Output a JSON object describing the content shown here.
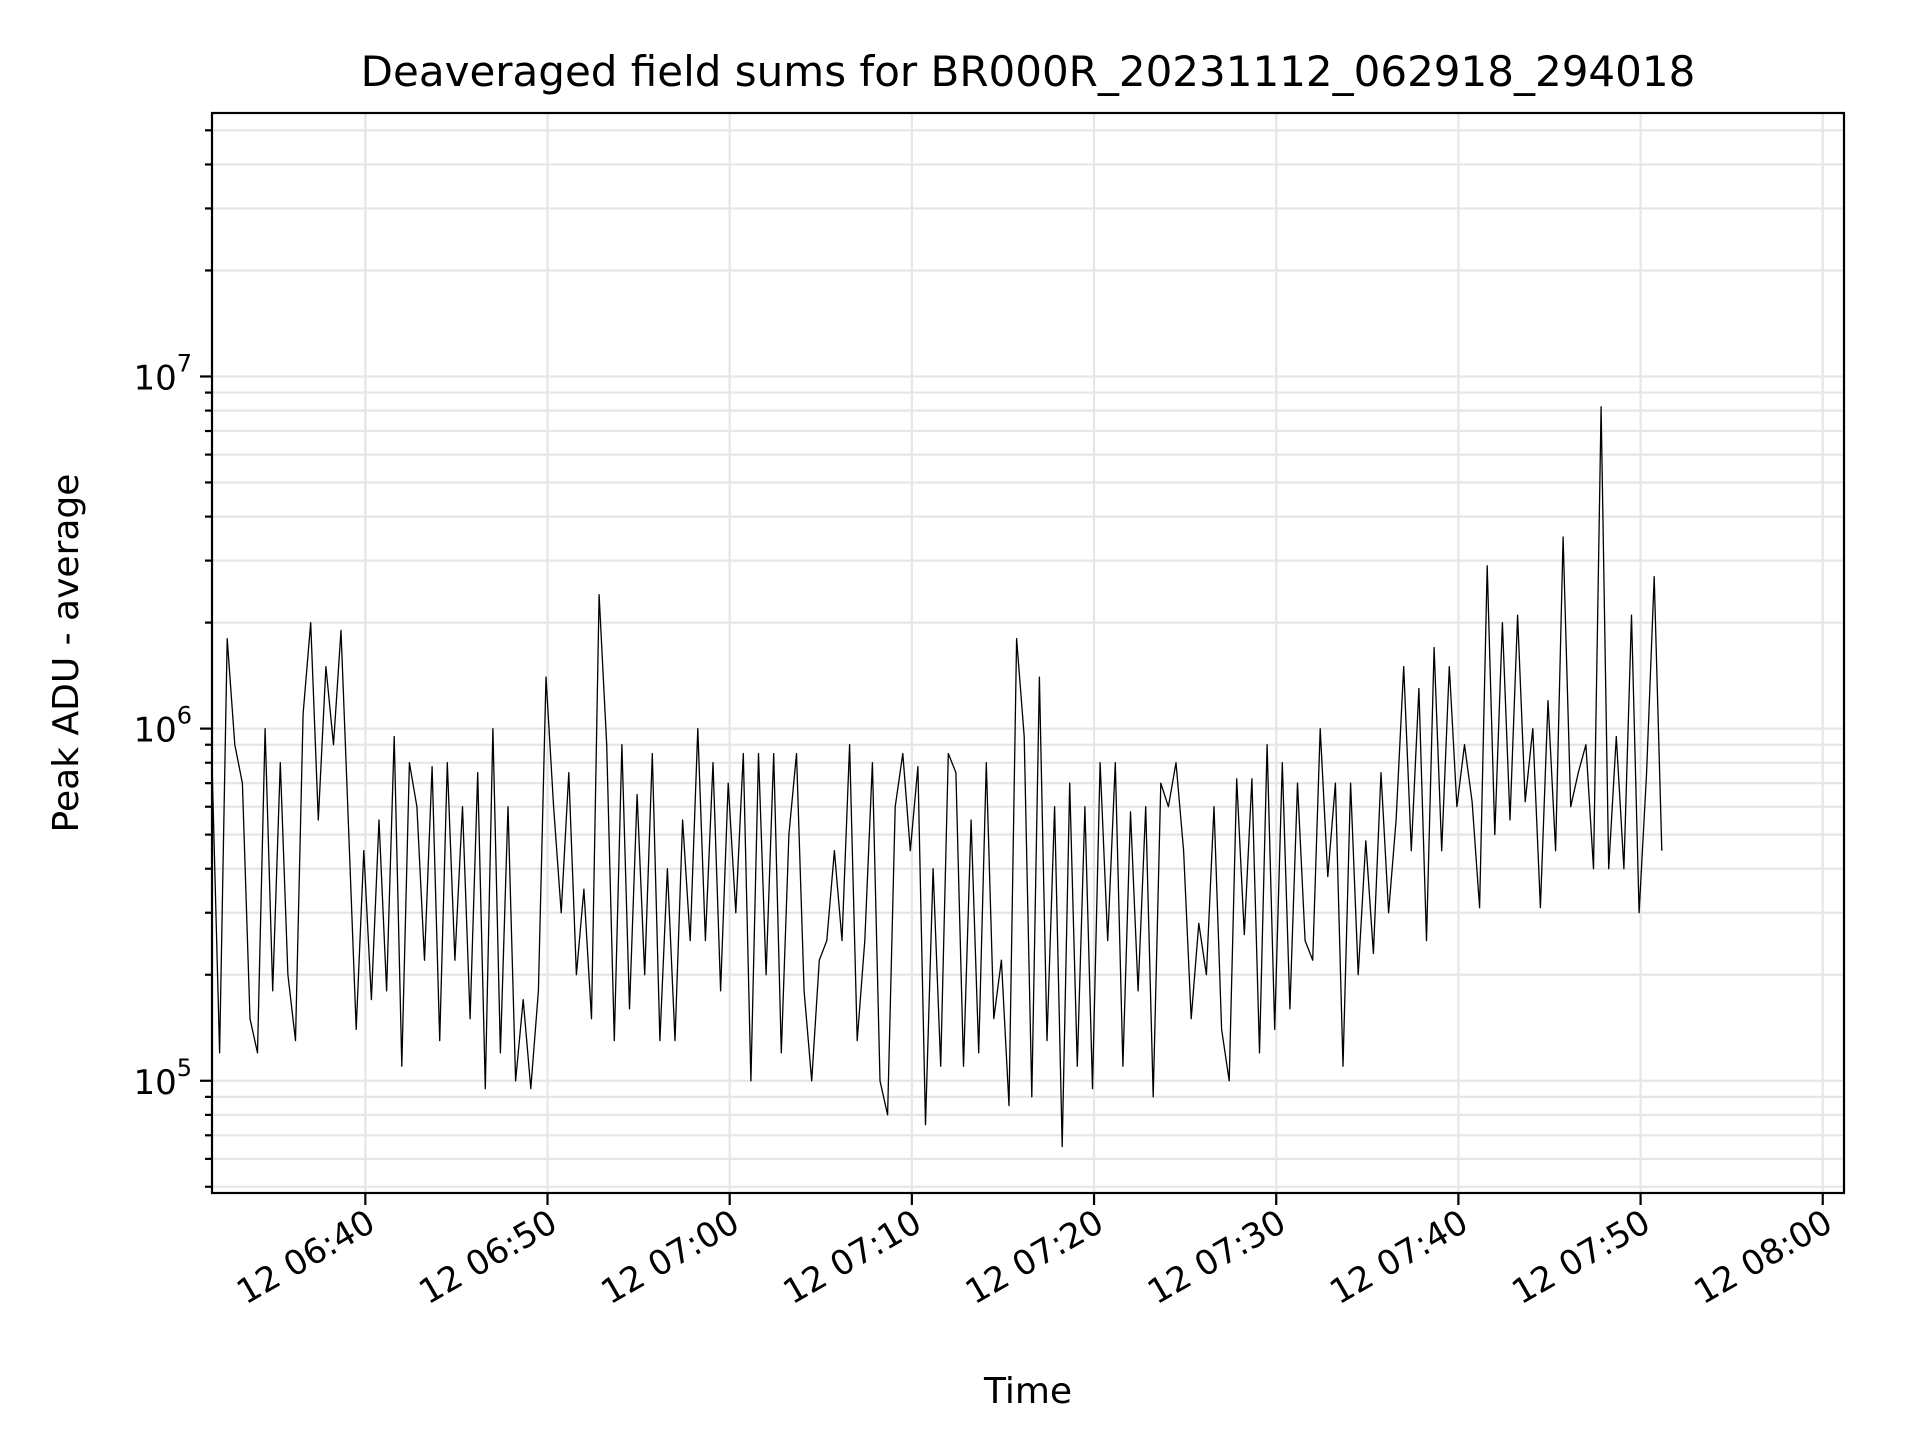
{
  "chart_data": {
    "type": "line",
    "title": "Deaveraged field sums for BR000R_20231112_062918_294018",
    "xlabel": "Time",
    "ylabel": "Peak ADU - average",
    "yscale": "log",
    "grid": true,
    "x_range": [
      "2023-11-12 06:31:35",
      "2023-11-12 08:01:10"
    ],
    "y_range": [
      48000,
      56000000
    ],
    "x_ticks": [
      "12 06:40",
      "12 06:50",
      "12 07:00",
      "12 07:10",
      "12 07:20",
      "12 07:30",
      "12 07:40",
      "12 07:50",
      "12 08:00"
    ],
    "y_ticks": [
      {
        "base": "10",
        "exp": "5",
        "value": 100000
      },
      {
        "base": "10",
        "exp": "6",
        "value": 1000000
      },
      {
        "base": "10",
        "exp": "7",
        "value": 10000000
      }
    ],
    "series": [
      {
        "color": "#000000",
        "points": [
          [
            "06:31:35",
            800000
          ],
          [
            "06:32:00",
            120000
          ],
          [
            "06:32:25",
            1800000
          ],
          [
            "06:32:50",
            900000
          ],
          [
            "06:33:15",
            700000
          ],
          [
            "06:33:40",
            150000
          ],
          [
            "06:34:05",
            120000
          ],
          [
            "06:34:30",
            1000000
          ],
          [
            "06:34:55",
            180000
          ],
          [
            "06:35:20",
            800000
          ],
          [
            "06:35:45",
            200000
          ],
          [
            "06:36:10",
            130000
          ],
          [
            "06:36:35",
            1100000
          ],
          [
            "06:37:00",
            2000000
          ],
          [
            "06:37:25",
            550000
          ],
          [
            "06:37:50",
            1500000
          ],
          [
            "06:38:15",
            900000
          ],
          [
            "06:38:40",
            1900000
          ],
          [
            "06:39:05",
            520000
          ],
          [
            "06:39:30",
            140000
          ],
          [
            "06:39:55",
            450000
          ],
          [
            "06:40:20",
            170000
          ],
          [
            "06:40:45",
            550000
          ],
          [
            "06:41:10",
            180000
          ],
          [
            "06:41:35",
            950000
          ],
          [
            "06:42:00",
            110000
          ],
          [
            "06:42:25",
            800000
          ],
          [
            "06:42:50",
            600000
          ],
          [
            "06:43:15",
            220000
          ],
          [
            "06:43:40",
            780000
          ],
          [
            "06:44:05",
            130000
          ],
          [
            "06:44:30",
            800000
          ],
          [
            "06:44:55",
            220000
          ],
          [
            "06:45:20",
            600000
          ],
          [
            "06:45:45",
            150000
          ],
          [
            "06:46:10",
            750000
          ],
          [
            "06:46:35",
            95000
          ],
          [
            "06:47:00",
            1000000
          ],
          [
            "06:47:25",
            120000
          ],
          [
            "06:47:50",
            600000
          ],
          [
            "06:48:15",
            100000
          ],
          [
            "06:48:40",
            170000
          ],
          [
            "06:49:05",
            95000
          ],
          [
            "06:49:30",
            180000
          ],
          [
            "06:49:55",
            1400000
          ],
          [
            "06:50:20",
            600000
          ],
          [
            "06:50:45",
            300000
          ],
          [
            "06:51:10",
            750000
          ],
          [
            "06:51:35",
            200000
          ],
          [
            "06:52:00",
            350000
          ],
          [
            "06:52:25",
            150000
          ],
          [
            "06:52:50",
            2400000
          ],
          [
            "06:53:15",
            900000
          ],
          [
            "06:53:40",
            130000
          ],
          [
            "06:54:05",
            900000
          ],
          [
            "06:54:30",
            160000
          ],
          [
            "06:54:55",
            650000
          ],
          [
            "06:55:20",
            200000
          ],
          [
            "06:55:45",
            850000
          ],
          [
            "06:56:10",
            130000
          ],
          [
            "06:56:35",
            400000
          ],
          [
            "06:57:00",
            130000
          ],
          [
            "06:57:25",
            550000
          ],
          [
            "06:57:50",
            250000
          ],
          [
            "06:58:15",
            1000000
          ],
          [
            "06:58:40",
            250000
          ],
          [
            "06:59:05",
            800000
          ],
          [
            "06:59:30",
            180000
          ],
          [
            "06:59:55",
            700000
          ],
          [
            "07:00:20",
            300000
          ],
          [
            "07:00:45",
            850000
          ],
          [
            "07:01:10",
            100000
          ],
          [
            "07:01:35",
            850000
          ],
          [
            "07:02:00",
            200000
          ],
          [
            "07:02:25",
            850000
          ],
          [
            "07:02:50",
            120000
          ],
          [
            "07:03:15",
            500000
          ],
          [
            "07:03:40",
            850000
          ],
          [
            "07:04:05",
            180000
          ],
          [
            "07:04:30",
            100000
          ],
          [
            "07:04:55",
            220000
          ],
          [
            "07:05:20",
            250000
          ],
          [
            "07:05:45",
            450000
          ],
          [
            "07:06:10",
            250000
          ],
          [
            "07:06:35",
            900000
          ],
          [
            "07:07:00",
            130000
          ],
          [
            "07:07:25",
            250000
          ],
          [
            "07:07:50",
            800000
          ],
          [
            "07:08:15",
            100000
          ],
          [
            "07:08:40",
            80000
          ],
          [
            "07:09:05",
            600000
          ],
          [
            "07:09:30",
            850000
          ],
          [
            "07:09:55",
            450000
          ],
          [
            "07:10:20",
            780000
          ],
          [
            "07:10:45",
            75000
          ],
          [
            "07:11:10",
            400000
          ],
          [
            "07:11:35",
            110000
          ],
          [
            "07:12:00",
            850000
          ],
          [
            "07:12:25",
            750000
          ],
          [
            "07:12:50",
            110000
          ],
          [
            "07:13:15",
            550000
          ],
          [
            "07:13:40",
            120000
          ],
          [
            "07:14:05",
            800000
          ],
          [
            "07:14:30",
            150000
          ],
          [
            "07:14:55",
            220000
          ],
          [
            "07:15:20",
            85000
          ],
          [
            "07:15:45",
            1800000
          ],
          [
            "07:16:10",
            950000
          ],
          [
            "07:16:35",
            90000
          ],
          [
            "07:17:00",
            1400000
          ],
          [
            "07:17:25",
            130000
          ],
          [
            "07:17:50",
            600000
          ],
          [
            "07:18:15",
            65000
          ],
          [
            "07:18:40",
            700000
          ],
          [
            "07:19:05",
            110000
          ],
          [
            "07:19:30",
            600000
          ],
          [
            "07:19:55",
            95000
          ],
          [
            "07:20:20",
            800000
          ],
          [
            "07:20:45",
            250000
          ],
          [
            "07:21:10",
            800000
          ],
          [
            "07:21:35",
            110000
          ],
          [
            "07:22:00",
            580000
          ],
          [
            "07:22:25",
            180000
          ],
          [
            "07:22:50",
            600000
          ],
          [
            "07:23:15",
            90000
          ],
          [
            "07:23:40",
            700000
          ],
          [
            "07:24:05",
            600000
          ],
          [
            "07:24:30",
            800000
          ],
          [
            "07:24:55",
            450000
          ],
          [
            "07:25:20",
            150000
          ],
          [
            "07:25:45",
            280000
          ],
          [
            "07:26:10",
            200000
          ],
          [
            "07:26:35",
            600000
          ],
          [
            "07:27:00",
            140000
          ],
          [
            "07:27:25",
            100000
          ],
          [
            "07:27:50",
            720000
          ],
          [
            "07:28:15",
            260000
          ],
          [
            "07:28:40",
            720000
          ],
          [
            "07:29:05",
            120000
          ],
          [
            "07:29:30",
            900000
          ],
          [
            "07:29:55",
            140000
          ],
          [
            "07:30:20",
            800000
          ],
          [
            "07:30:45",
            160000
          ],
          [
            "07:31:10",
            700000
          ],
          [
            "07:31:35",
            250000
          ],
          [
            "07:32:00",
            220000
          ],
          [
            "07:32:25",
            1000000
          ],
          [
            "07:32:50",
            380000
          ],
          [
            "07:33:15",
            700000
          ],
          [
            "07:33:40",
            110000
          ],
          [
            "07:34:05",
            700000
          ],
          [
            "07:34:30",
            200000
          ],
          [
            "07:34:55",
            480000
          ],
          [
            "07:35:20",
            230000
          ],
          [
            "07:35:45",
            750000
          ],
          [
            "07:36:10",
            300000
          ],
          [
            "07:36:35",
            550000
          ],
          [
            "07:37:00",
            1500000
          ],
          [
            "07:37:25",
            450000
          ],
          [
            "07:37:50",
            1300000
          ],
          [
            "07:38:15",
            250000
          ],
          [
            "07:38:40",
            1700000
          ],
          [
            "07:39:05",
            450000
          ],
          [
            "07:39:30",
            1500000
          ],
          [
            "07:39:55",
            600000
          ],
          [
            "07:40:20",
            900000
          ],
          [
            "07:40:45",
            620000
          ],
          [
            "07:41:10",
            310000
          ],
          [
            "07:41:35",
            2900000
          ],
          [
            "07:42:00",
            500000
          ],
          [
            "07:42:25",
            2000000
          ],
          [
            "07:42:50",
            550000
          ],
          [
            "07:43:15",
            2100000
          ],
          [
            "07:43:40",
            620000
          ],
          [
            "07:44:05",
            1000000
          ],
          [
            "07:44:30",
            310000
          ],
          [
            "07:44:55",
            1200000
          ],
          [
            "07:45:20",
            450000
          ],
          [
            "07:45:45",
            3500000
          ],
          [
            "07:46:10",
            600000
          ],
          [
            "07:46:35",
            750000
          ],
          [
            "07:47:00",
            900000
          ],
          [
            "07:47:25",
            400000
          ],
          [
            "07:47:50",
            8200000
          ],
          [
            "07:48:15",
            400000
          ],
          [
            "07:48:40",
            950000
          ],
          [
            "07:49:05",
            400000
          ],
          [
            "07:49:30",
            2100000
          ],
          [
            "07:49:55",
            300000
          ],
          [
            "07:50:20",
            750000
          ],
          [
            "07:50:45",
            2700000
          ],
          [
            "07:51:10",
            450000
          ]
        ]
      }
    ]
  }
}
